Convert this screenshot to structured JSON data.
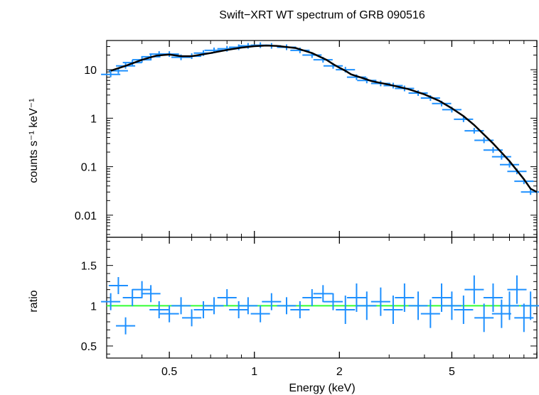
{
  "title": "Swift−XRT WT spectrum of GRB 090516",
  "colors": {
    "data": "#1e90ff",
    "model": "#000000",
    "unity_line": "#33ff33",
    "frame": "#000000"
  },
  "chart_data": [
    {
      "type": "scatter",
      "panel": "spectrum",
      "ylabel": "counts s⁻¹ keV⁻¹",
      "xscale": "log",
      "yscale": "log",
      "xlim": [
        0.3,
        10
      ],
      "ylim": [
        0.0035,
        40
      ],
      "yticks": [
        {
          "value": 10,
          "label": "10"
        },
        {
          "value": 1,
          "label": "1"
        },
        {
          "value": 0.1,
          "label": "0.1"
        },
        {
          "value": 0.01,
          "label": "0.01"
        }
      ],
      "series": [
        {
          "role": "data",
          "x": [
            0.31,
            0.33,
            0.35,
            0.37,
            0.4,
            0.43,
            0.46,
            0.5,
            0.55,
            0.6,
            0.66,
            0.72,
            0.8,
            0.88,
            0.95,
            1.05,
            1.15,
            1.3,
            1.45,
            1.6,
            1.75,
            1.9,
            2.1,
            2.3,
            2.5,
            2.8,
            3.1,
            3.4,
            3.8,
            4.2,
            4.6,
            5.0,
            5.5,
            6.0,
            6.5,
            7.0,
            7.5,
            8.0,
            8.5,
            9.0,
            9.5
          ],
          "y": [
            8,
            9.5,
            12,
            14,
            16,
            18.5,
            21,
            21,
            18,
            19,
            22,
            25,
            27,
            29,
            31,
            32,
            31,
            29,
            25,
            20,
            16,
            12,
            10,
            7,
            6,
            5.2,
            4.7,
            4.1,
            3.3,
            2.6,
            2.0,
            1.5,
            0.95,
            0.55,
            0.35,
            0.22,
            0.16,
            0.11,
            0.08,
            0.05,
            0.03
          ]
        },
        {
          "role": "model",
          "x": [
            0.31,
            0.35,
            0.4,
            0.45,
            0.5,
            0.55,
            0.6,
            0.7,
            0.8,
            0.9,
            1.0,
            1.1,
            1.2,
            1.4,
            1.6,
            1.8,
            1.9,
            2.0,
            2.1,
            2.2,
            2.4,
            2.6,
            3.0,
            3.5,
            4.0,
            4.5,
            5.0,
            5.5,
            6.0,
            7.0,
            8.0,
            9.0,
            9.5,
            10.0
          ],
          "y": [
            9.5,
            12,
            16,
            19.5,
            20.5,
            19,
            19,
            22,
            25.5,
            28.5,
            30.5,
            31.5,
            31,
            28,
            22,
            16,
            13,
            11,
            9.5,
            8,
            6.8,
            5.8,
            4.9,
            4.0,
            3.1,
            2.3,
            1.6,
            1.1,
            0.72,
            0.3,
            0.13,
            0.055,
            0.035,
            0.03
          ]
        }
      ]
    },
    {
      "type": "scatter",
      "panel": "ratio",
      "xlabel": "Energy (keV)",
      "ylabel": "ratio",
      "xscale": "log",
      "xlim": [
        0.3,
        10
      ],
      "ylim": [
        0.35,
        1.85
      ],
      "yticks": [
        {
          "value": 1.5,
          "label": "1.5"
        },
        {
          "value": 1,
          "label": "1"
        },
        {
          "value": 0.5,
          "label": "0.5"
        }
      ],
      "xticks": [
        {
          "value": 0.5,
          "label": "0.5"
        },
        {
          "value": 1,
          "label": "1"
        },
        {
          "value": 2,
          "label": "2"
        },
        {
          "value": 5,
          "label": "5"
        }
      ],
      "reference_line": 1,
      "series": [
        {
          "role": "data",
          "x": [
            0.31,
            0.33,
            0.35,
            0.37,
            0.4,
            0.43,
            0.46,
            0.5,
            0.55,
            0.6,
            0.66,
            0.72,
            0.8,
            0.88,
            0.95,
            1.05,
            1.15,
            1.3,
            1.45,
            1.6,
            1.75,
            1.9,
            2.1,
            2.3,
            2.5,
            2.8,
            3.1,
            3.4,
            3.8,
            4.2,
            4.6,
            5.0,
            5.5,
            6.0,
            6.5,
            7.0,
            7.5,
            8.0,
            8.5,
            9.0,
            9.5
          ],
          "y": [
            1.05,
            1.25,
            0.75,
            1.1,
            1.2,
            1.15,
            0.95,
            0.9,
            1.0,
            0.85,
            0.95,
            1.0,
            1.1,
            0.95,
            1.0,
            0.9,
            1.05,
            1.0,
            0.95,
            1.1,
            1.15,
            1.05,
            0.95,
            1.1,
            1.0,
            1.05,
            0.95,
            1.1,
            1.0,
            0.9,
            1.1,
            1.0,
            0.95,
            1.2,
            0.85,
            1.1,
            0.9,
            1.0,
            1.2,
            0.85,
            1.0
          ]
        }
      ]
    }
  ]
}
